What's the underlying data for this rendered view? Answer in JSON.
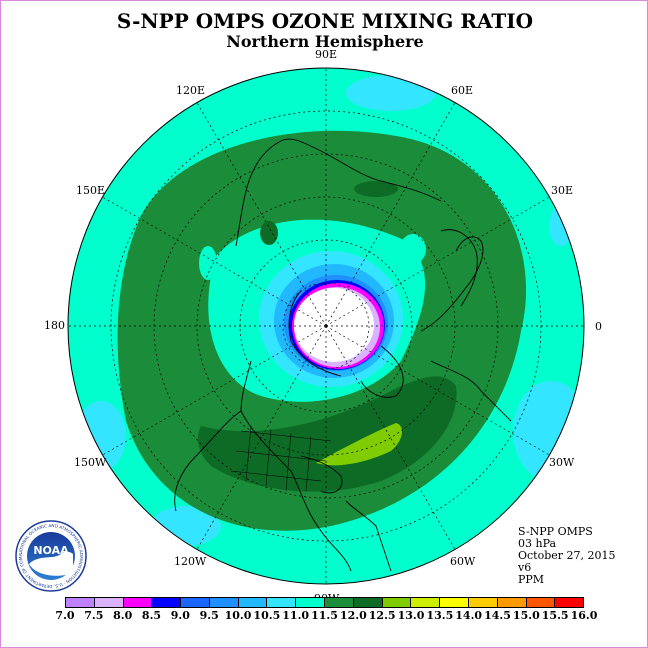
{
  "title": "S-NPP OMPS OZONE MIXING RATIO",
  "subtitle": "Northern Hemisphere",
  "longitude_labels": [
    {
      "key": "lon-90e",
      "text": "90E",
      "lon": 90
    },
    {
      "key": "lon-60e",
      "text": "60E",
      "lon": 60
    },
    {
      "key": "lon-30e",
      "text": "30E",
      "lon": 30
    },
    {
      "key": "lon-0",
      "text": "0",
      "lon": 0
    },
    {
      "key": "lon-30w",
      "text": "30W",
      "lon": -30
    },
    {
      "key": "lon-60w",
      "text": "60W",
      "lon": -60
    },
    {
      "key": "lon-90w",
      "text": "90W",
      "lon": -90
    },
    {
      "key": "lon-120w",
      "text": "120W",
      "lon": -120
    },
    {
      "key": "lon-150w",
      "text": "150W",
      "lon": -150
    },
    {
      "key": "lon-180",
      "text": "180",
      "lon": 180
    },
    {
      "key": "lon-150e",
      "text": "150E",
      "lon": 150
    },
    {
      "key": "lon-120e",
      "text": "120E",
      "lon": 120
    }
  ],
  "info": {
    "instrument": "S-NPP OMPS",
    "level": "03 hPa",
    "date": "October 27, 2015",
    "version": "v6",
    "units": "PPM"
  },
  "colorbar": {
    "ticks": [
      "7.0",
      "7.5",
      "8.0",
      "8.5",
      "9.0",
      "9.5",
      "10.0",
      "10.5",
      "11.0",
      "11.5",
      "12.0",
      "12.5",
      "13.0",
      "13.5",
      "14.0",
      "14.5",
      "15.0",
      "15.5",
      "16.0"
    ],
    "colors": [
      "#bf80ff",
      "#d9b3ff",
      "#ff00ff",
      "#0000ff",
      "#1a66ff",
      "#1e90ff",
      "#22b8ff",
      "#33e5ff",
      "#00ffcc",
      "#1a8c3a",
      "#0d6b26",
      "#7fcc00",
      "#ccee00",
      "#ffff00",
      "#ffcc00",
      "#ff9900",
      "#ff5500",
      "#ff0000",
      "#8b4a2b"
    ]
  },
  "logo_text": "NOAA",
  "logo_ring_text": "NATIONAL OCEANIC AND ATMOSPHERIC ADMINISTRATION · U.S. DEPARTMENT OF COMMERCE",
  "colors": {
    "background": "#ffffff",
    "frame": "#d98ad9",
    "level_11_0": "#00ffcc",
    "level_10_5": "#33e5ff",
    "level_11_5": "#1a8c3a",
    "level_12_0": "#0d6b26",
    "level_12_5": "#7fcc00",
    "polar_night": "#ffffff"
  }
}
